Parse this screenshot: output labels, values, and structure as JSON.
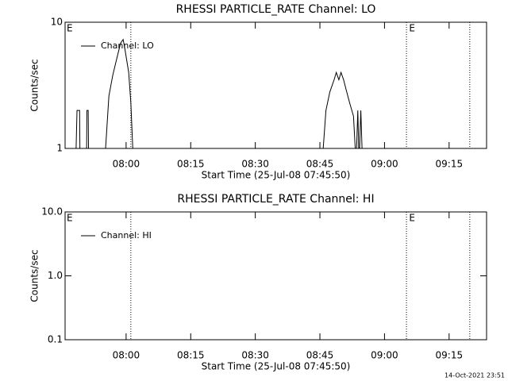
{
  "chart_data": [
    {
      "type": "line",
      "title": "RHESSI PARTICLE_RATE Channel: LO",
      "ylabel": "Counts/sec",
      "xlabel": "Start Time (25-Jul-08 07:45:50)",
      "log_y": true,
      "ylim": [
        1,
        10
      ],
      "yticks": [
        1,
        10
      ],
      "xlim": [
        465.83,
        563.7
      ],
      "xticks": [
        {
          "value": 480,
          "label": "08:00"
        },
        {
          "value": 495,
          "label": "08:15"
        },
        {
          "value": 510,
          "label": "08:30"
        },
        {
          "value": 525,
          "label": "08:45"
        },
        {
          "value": 540,
          "label": "09:00"
        },
        {
          "value": 555,
          "label": "09:15"
        }
      ],
      "legend": "upper left",
      "series": [
        {
          "name": "Channel: LO",
          "color": "#000000",
          "x": [
            468.3,
            468.6,
            469.2,
            469.3,
            470.8,
            470.9,
            471.2,
            471.3,
            475.0,
            476.0,
            476.9,
            477.8,
            478.7,
            479.3,
            479.6,
            480.6,
            481.1,
            481.7,
            525.5,
            526.4,
            527.3,
            528.3,
            528.8,
            529.4,
            529.9,
            530.5,
            531.0,
            531.9,
            532.8,
            533.4,
            533.8,
            534.1,
            534.5,
            534.9
          ],
          "values": [
            0,
            2,
            2,
            0,
            0,
            2,
            2,
            0,
            0,
            2.6,
            3.8,
            5.1,
            6.8,
            7.3,
            6.5,
            4,
            2.3,
            0,
            0,
            2,
            2.8,
            3.5,
            4,
            3.5,
            4,
            3.5,
            3,
            2.3,
            1.8,
            0,
            2,
            0,
            2,
            0
          ]
        }
      ],
      "vlines": [
        481.1,
        545.1,
        559.8
      ],
      "annotations": [
        {
          "text": "E",
          "x": 466.2
        },
        {
          "text": "E",
          "x": 545.7
        }
      ]
    },
    {
      "type": "line",
      "title": "RHESSI PARTICLE_RATE Channel: HI",
      "ylabel": "Counts/sec",
      "xlabel": "Start Time (25-Jul-08 07:45:50)",
      "log_y": true,
      "ylim": [
        0.1,
        10
      ],
      "yticks": [
        {
          "value": 10,
          "label": "10.0"
        },
        {
          "value": 1,
          "label": "1.0"
        },
        0.1
      ],
      "xlim": [
        465.83,
        563.7
      ],
      "xticks": [
        {
          "value": 480,
          "label": "08:00"
        },
        {
          "value": 495,
          "label": "08:15"
        },
        {
          "value": 510,
          "label": "08:30"
        },
        {
          "value": 525,
          "label": "08:45"
        },
        {
          "value": 540,
          "label": "09:00"
        },
        {
          "value": 555,
          "label": "09:15"
        }
      ],
      "legend": "upper left",
      "series": [
        {
          "name": "Channel: HI",
          "color": "#000000",
          "x": [],
          "values": []
        }
      ],
      "vlines": [
        481.1,
        545.1,
        559.8
      ],
      "annotations": [
        {
          "text": "E",
          "x": 466.2
        },
        {
          "text": "E",
          "x": 545.7
        }
      ]
    }
  ],
  "footer": "14-Oct-2021 23:51"
}
